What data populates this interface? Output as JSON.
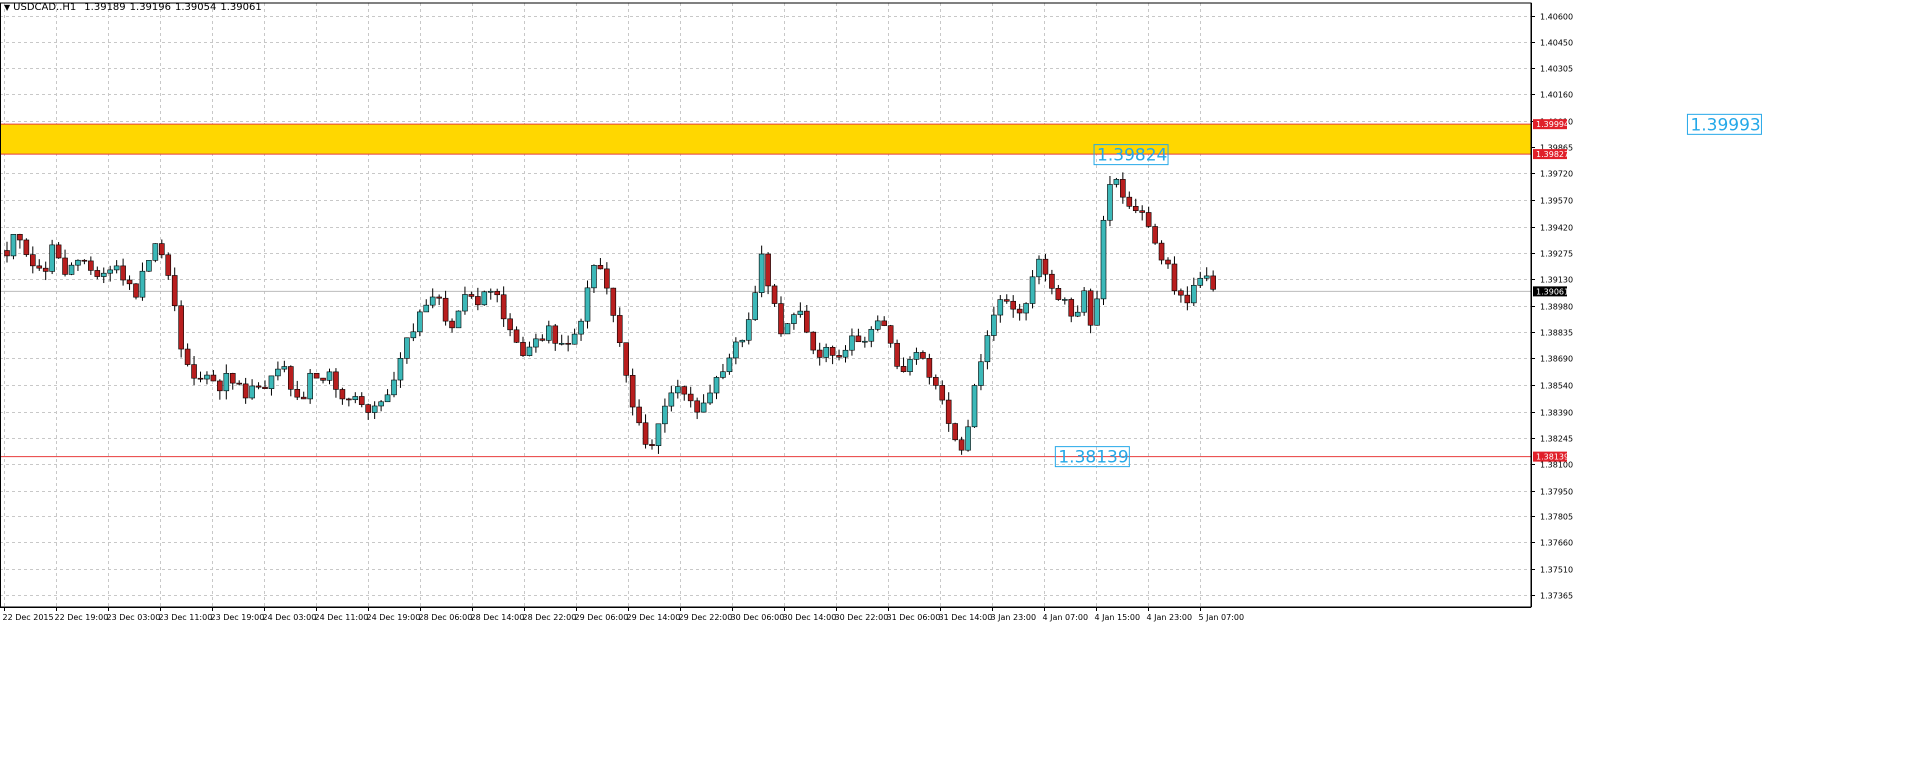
{
  "window": {
    "symbol": "USDCAD..H1",
    "ohlc": [
      "1.39189",
      "1.39196",
      "1.39054",
      "1.39061"
    ]
  },
  "colors": {
    "bull_candle": "#3cb8b8",
    "bear_candle": "#b81e1e",
    "zone_fill": "#ffd700",
    "level_line": "#e83c3c",
    "label_text": "#25a8e8",
    "grid": "#c8c8c8",
    "current_price_bg": "#000000",
    "level_tag_bg": "#e0202a"
  },
  "chart_data": {
    "type": "candlestick",
    "symbol": "USDCAD",
    "timeframe": "H1",
    "price_axis": [
      "1.40600",
      "1.40450",
      "1.40305",
      "1.40160",
      "1.40010",
      "1.39865",
      "1.39720",
      "1.39570",
      "1.39420",
      "1.39275",
      "1.39130",
      "1.38980",
      "1.38835",
      "1.38690",
      "1.38540",
      "1.38390",
      "1.38245",
      "1.38100",
      "1.37950",
      "1.37805",
      "1.37660",
      "1.37510",
      "1.37365"
    ],
    "price_range": [
      1.373,
      1.4067
    ],
    "time_axis": [
      "22 Dec 2015",
      "22 Dec 19:00",
      "23 Dec 03:00",
      "23 Dec 11:00",
      "23 Dec 19:00",
      "24 Dec 03:00",
      "24 Dec 11:00",
      "24 Dec 19:00",
      "28 Dec 06:00",
      "28 Dec 14:00",
      "28 Dec 22:00",
      "29 Dec 06:00",
      "29 Dec 14:00",
      "29 Dec 22:00",
      "30 Dec 06:00",
      "30 Dec 14:00",
      "30 Dec 22:00",
      "31 Dec 06:00",
      "31 Dec 14:00",
      "3 Jan 23:00",
      "4 Jan 07:00",
      "4 Jan 15:00",
      "4 Jan 23:00",
      "5 Jan 07:00"
    ],
    "grid": true,
    "zone": {
      "from": 1.39827,
      "to": 1.39994
    },
    "levels": [
      1.39827,
      1.39994,
      1.38139
    ],
    "level_tags": [
      "1.39994",
      "1.39827",
      "1.38139"
    ],
    "current_price": "1.39061",
    "current_price_value": 1.39061,
    "annotations": [
      {
        "text": "1.39993",
        "price": 1.39993,
        "bar": 261
      },
      {
        "text": "1.39824",
        "price": 1.39824,
        "bar": 169
      },
      {
        "text": "1.38139",
        "price": 1.38139,
        "bar": 163
      }
    ],
    "close_path": [
      1.3925,
      1.394,
      1.393,
      1.392,
      1.3915,
      1.3935,
      1.3915,
      1.392,
      1.3922,
      1.3918,
      1.3915,
      1.3918,
      1.392,
      1.391,
      1.3905,
      1.392,
      1.3935,
      1.3925,
      1.3905,
      1.387,
      1.386,
      1.3855,
      1.3865,
      1.385,
      1.386,
      1.3855,
      1.3845,
      1.3855,
      1.385,
      1.386,
      1.3865,
      1.385,
      1.384,
      1.386,
      1.3855,
      1.386,
      1.385,
      1.3845,
      1.385,
      1.3838,
      1.384,
      1.3848,
      1.3855,
      1.3872,
      1.3885,
      1.3895,
      1.3905,
      1.39,
      1.3885,
      1.3895,
      1.3905,
      1.39,
      1.391,
      1.3905,
      1.389,
      1.388,
      1.387,
      1.388,
      1.3878,
      1.3885,
      1.3875,
      1.3875,
      1.3885,
      1.3905,
      1.3925,
      1.391,
      1.389,
      1.3865,
      1.384,
      1.3825,
      1.382,
      1.3835,
      1.385,
      1.3855,
      1.3845,
      1.384,
      1.385,
      1.3855,
      1.386,
      1.3875,
      1.388,
      1.39,
      1.3925,
      1.3905,
      1.3885,
      1.389,
      1.3895,
      1.388,
      1.387,
      1.3875,
      1.387,
      1.3875,
      1.388,
      1.388,
      1.3885,
      1.389,
      1.3875,
      1.386,
      1.3865,
      1.3875,
      1.386,
      1.3855,
      1.3835,
      1.3825,
      1.3815,
      1.385,
      1.387,
      1.389,
      1.3905,
      1.3895,
      1.3895,
      1.3905,
      1.3925,
      1.3915,
      1.3905,
      1.39,
      1.389,
      1.3905,
      1.388,
      1.394,
      1.3975,
      1.396,
      1.395,
      1.3955,
      1.3945,
      1.393,
      1.392,
      1.3905,
      1.39,
      1.391,
      1.3915,
      1.3906
    ]
  }
}
